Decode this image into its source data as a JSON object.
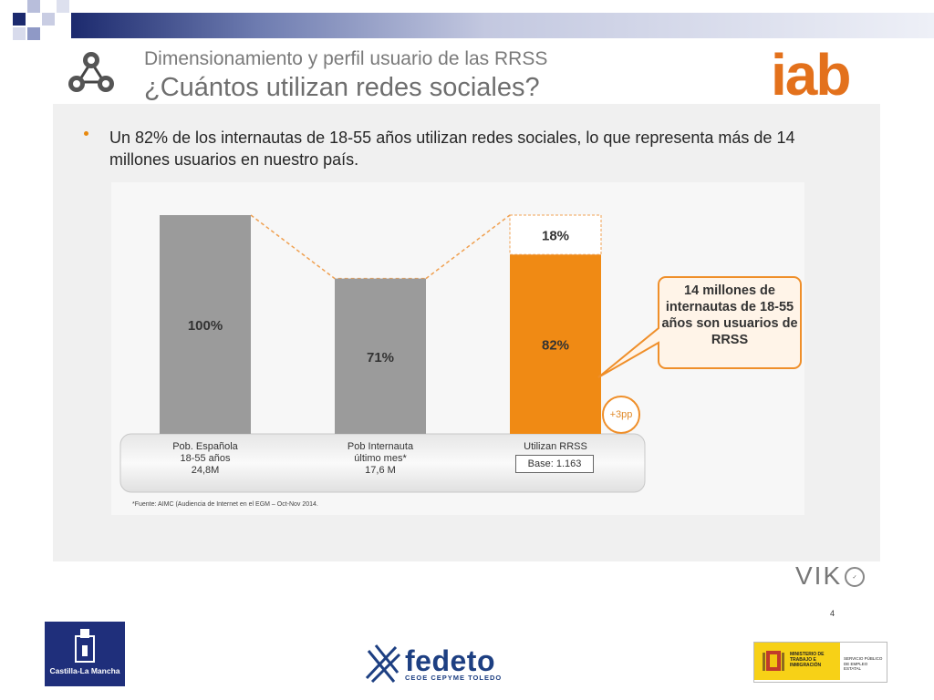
{
  "header": {
    "subtitle": "Dimensionamiento y perfil usuario de las RRSS",
    "title": "¿Cuántos utilizan redes sociales?"
  },
  "bullet": {
    "text": "Un 82% de los internautas de 18-55 años utilizan redes sociales, lo que representa más de 14 millones usuarios en nuestro país."
  },
  "brand": {
    "iab": "iab",
    "viko": "VIK",
    "page": "4"
  },
  "chart_data": {
    "type": "bar",
    "categories": [
      [
        "Pob. Española",
        "18-55 años",
        "24,8M"
      ],
      [
        "Pob Internauta",
        "último mes*",
        "17,6 M"
      ],
      [
        "Utilizan RRSS"
      ]
    ],
    "values": [
      100,
      71,
      100
    ],
    "segments": [
      [
        {
          "label": "100%",
          "value": 100,
          "color": "#9b9b9b"
        }
      ],
      [
        {
          "label": "71%",
          "value": 71,
          "color": "#9b9b9b"
        }
      ],
      [
        {
          "label": "82%",
          "value": 82,
          "color": "#f08a14"
        },
        {
          "label": "18%",
          "value": 18,
          "color": "#ffffff"
        }
      ]
    ],
    "ylim": [
      0,
      100
    ],
    "base_label": "Base: 1.163",
    "callout": "14 millones de internautas de 18-55 años son usuarios de RRSS",
    "badge": "+3pp",
    "footnote": "*Fuente: AIMC (Audiencia de Internet en el EGM – Oct-Nov 2014."
  },
  "footer": {
    "clm": "Castilla-La Mancha",
    "fedeto": "fedeto",
    "fedeto_sub": "CEOE CEPYME TOLEDO",
    "ministerio": "MINISTERIO DE TRABAJO E INMIGRACIÓN",
    "sepe": "SERVICIO PÚBLICO DE EMPLEO ESTATAL"
  },
  "colors": {
    "accent": "#f08a14",
    "bar_grey": "#9b9b9b",
    "navy": "#1f2f7b"
  }
}
